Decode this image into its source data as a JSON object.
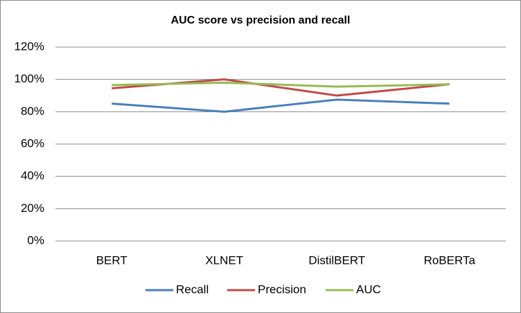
{
  "chart_data": {
    "type": "line",
    "title": "AUC score vs precision and recall",
    "categories": [
      "BERT",
      "XLNET",
      "DistilBERT",
      "RoBERTa"
    ],
    "series": [
      {
        "name": "Recall",
        "color": "#4a7ebb",
        "values": [
          85,
          80,
          87.5,
          85
        ]
      },
      {
        "name": "Precision",
        "color": "#be4b48",
        "values": [
          94.5,
          100,
          90,
          97
        ]
      },
      {
        "name": "AUC",
        "color": "#98b954",
        "values": [
          96.5,
          98,
          95.5,
          97
        ]
      }
    ],
    "ylim": [
      0,
      120
    ],
    "yticks": [
      {
        "value": 0,
        "label": "0%"
      },
      {
        "value": 20,
        "label": "20%"
      },
      {
        "value": 40,
        "label": "40%"
      },
      {
        "value": 60,
        "label": "60%"
      },
      {
        "value": 80,
        "label": "80%"
      },
      {
        "value": 100,
        "label": "100%"
      },
      {
        "value": 120,
        "label": "120%"
      }
    ],
    "grid": true,
    "legend": "bottom"
  }
}
